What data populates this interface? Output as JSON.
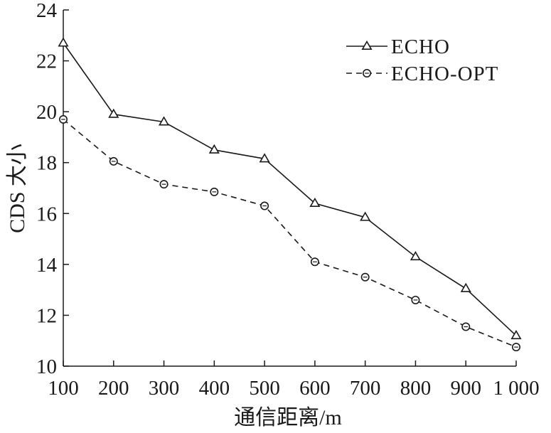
{
  "chart_data": {
    "type": "line",
    "x": [
      100,
      200,
      300,
      400,
      500,
      600,
      700,
      800,
      900,
      1000
    ],
    "x_tick_labels": [
      "100",
      "200",
      "300",
      "400",
      "500",
      "600",
      "700",
      "800",
      "900",
      "1 000"
    ],
    "y_ticks": [
      10,
      12,
      14,
      16,
      18,
      20,
      22,
      24
    ],
    "xlabel": "通信距离/m",
    "ylabel": "CDS 大小",
    "xlim": [
      100,
      1000
    ],
    "ylim": [
      10,
      24
    ],
    "grid": false,
    "legend_position": "top-right",
    "series": [
      {
        "name": "ECHO",
        "marker": "triangle",
        "line_style": "solid",
        "values": [
          22.7,
          19.9,
          19.6,
          18.5,
          18.15,
          16.4,
          15.85,
          14.3,
          13.05,
          11.2
        ]
      },
      {
        "name": "ECHO-OPT",
        "marker": "circle",
        "line_style": "dashed",
        "values": [
          19.7,
          18.05,
          17.15,
          16.85,
          16.3,
          14.1,
          13.5,
          12.6,
          11.55,
          10.75
        ]
      }
    ]
  }
}
